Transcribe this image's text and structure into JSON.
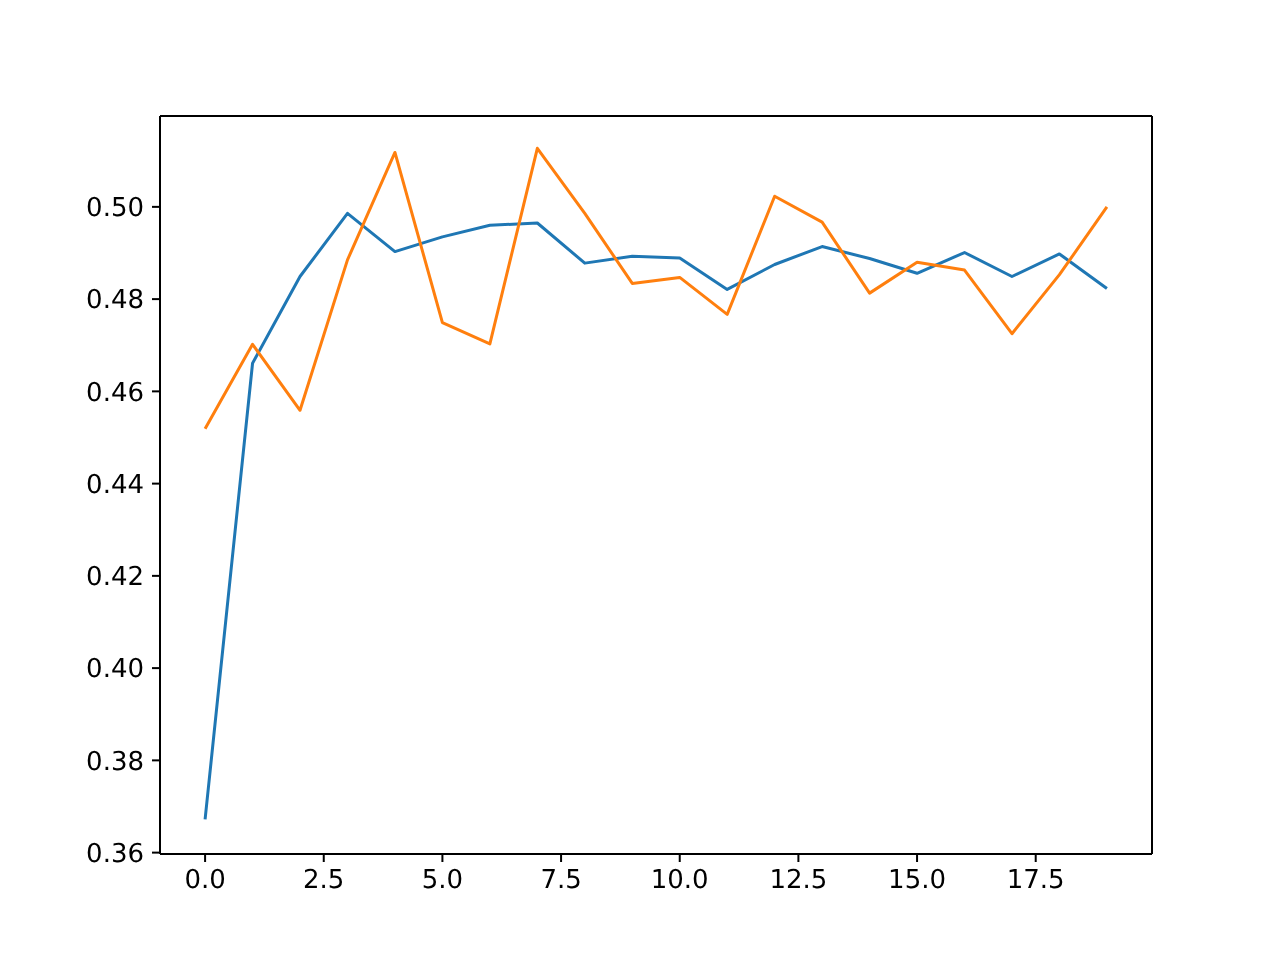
{
  "chart_data": {
    "type": "line",
    "x": [
      0,
      1,
      2,
      3,
      4,
      5,
      6,
      7,
      8,
      9,
      10,
      11,
      12,
      13,
      14,
      15,
      16,
      17,
      18,
      19
    ],
    "series": [
      {
        "color": "#1f77b4",
        "values": [
          0.3672,
          0.4661,
          0.4849,
          0.4986,
          0.4903,
          0.4935,
          0.496,
          0.4965,
          0.4878,
          0.4893,
          0.4889,
          0.4821,
          0.4875,
          0.4914,
          0.4888,
          0.4856,
          0.4901,
          0.4849,
          0.4898,
          0.4823
        ]
      },
      {
        "color": "#ff7f0e",
        "values": [
          0.4519,
          0.4702,
          0.4559,
          0.4885,
          0.5118,
          0.4749,
          0.4703,
          0.5127,
          0.4986,
          0.4834,
          0.4847,
          0.4767,
          0.5023,
          0.4967,
          0.4813,
          0.488,
          0.4863,
          0.4725,
          0.4853,
          0.5
        ]
      }
    ],
    "xlim": [
      -0.95,
      19.95
    ],
    "xticks": [
      {
        "value": 0,
        "label": "0.0"
      },
      {
        "value": 2.5,
        "label": "2.5"
      },
      {
        "value": 5,
        "label": "5.0"
      },
      {
        "value": 7.5,
        "label": "7.5"
      },
      {
        "value": 10,
        "label": "10.0"
      },
      {
        "value": 12.5,
        "label": "12.5"
      },
      {
        "value": 15,
        "label": "15.0"
      },
      {
        "value": 17.5,
        "label": "17.5"
      }
    ],
    "ylim": [
      0.3597,
      0.5197
    ],
    "yticks": [
      {
        "value": 0.36,
        "label": "0.36"
      },
      {
        "value": 0.38,
        "label": "0.38"
      },
      {
        "value": 0.4,
        "label": "0.40"
      },
      {
        "value": 0.42,
        "label": "0.42"
      },
      {
        "value": 0.44,
        "label": "0.44"
      },
      {
        "value": 0.46,
        "label": "0.46"
      },
      {
        "value": 0.48,
        "label": "0.48"
      },
      {
        "value": 0.5,
        "label": "0.50"
      }
    ],
    "grid": false,
    "legend": false,
    "marker": "none",
    "line_style": "solid"
  }
}
